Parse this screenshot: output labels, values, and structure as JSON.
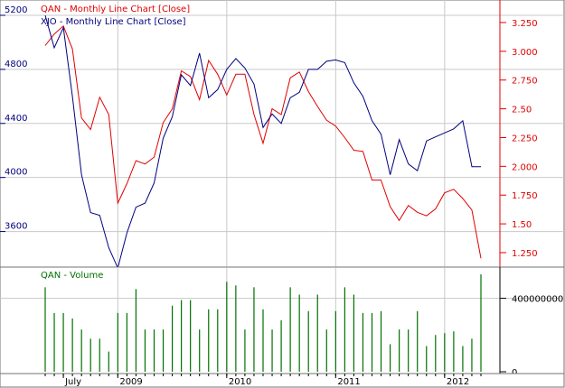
{
  "chart_data": [
    {
      "type": "line",
      "panel": "price",
      "series": [
        {
          "name": "QAN - Monthly Line Chart [Close]",
          "axis": "right",
          "color": "#e00000",
          "x": [
            "2008-05",
            "2008-06",
            "2008-07",
            "2008-08",
            "2008-09",
            "2008-10",
            "2008-11",
            "2008-12",
            "2009-01",
            "2009-02",
            "2009-03",
            "2009-04",
            "2009-05",
            "2009-06",
            "2009-07",
            "2009-08",
            "2009-09",
            "2009-10",
            "2009-11",
            "2009-12",
            "2010-01",
            "2010-02",
            "2010-03",
            "2010-04",
            "2010-05",
            "2010-06",
            "2010-07",
            "2010-08",
            "2010-09",
            "2010-10",
            "2010-11",
            "2010-12",
            "2011-01",
            "2011-02",
            "2011-03",
            "2011-04",
            "2011-05",
            "2011-06",
            "2011-07",
            "2011-08",
            "2011-09",
            "2011-10",
            "2011-11",
            "2011-12",
            "2012-01",
            "2012-02",
            "2012-03",
            "2012-04",
            "2012-05"
          ],
          "y": [
            3.05,
            3.15,
            3.22,
            3.02,
            2.42,
            2.32,
            2.6,
            2.45,
            1.68,
            1.85,
            2.05,
            2.02,
            2.08,
            2.38,
            2.5,
            2.83,
            2.78,
            2.58,
            2.92,
            2.8,
            2.62,
            2.8,
            2.8,
            2.45,
            2.2,
            2.5,
            2.45,
            2.77,
            2.82,
            2.65,
            2.52,
            2.4,
            2.35,
            2.25,
            2.14,
            2.13,
            1.88,
            1.88,
            1.65,
            1.53,
            1.66,
            1.6,
            1.57,
            1.63,
            1.77,
            1.8,
            1.72,
            1.62,
            1.2
          ]
        },
        {
          "name": "XJO - Monthly Line Chart [Close]",
          "axis": "left",
          "color": "#000080",
          "x": [
            "2008-05",
            "2008-06",
            "2008-07",
            "2008-08",
            "2008-09",
            "2008-10",
            "2008-11",
            "2008-12",
            "2009-01",
            "2009-02",
            "2009-03",
            "2009-04",
            "2009-05",
            "2009-06",
            "2009-07",
            "2009-08",
            "2009-09",
            "2009-10",
            "2009-11",
            "2009-12",
            "2010-01",
            "2010-02",
            "2010-03",
            "2010-04",
            "2010-05",
            "2010-06",
            "2010-07",
            "2010-08",
            "2010-09",
            "2010-10",
            "2010-11",
            "2010-12",
            "2011-01",
            "2011-02",
            "2011-03",
            "2011-04",
            "2011-05",
            "2011-06",
            "2011-07",
            "2011-08",
            "2011-09",
            "2011-10",
            "2011-11",
            "2011-12",
            "2012-01",
            "2012-02",
            "2012-03",
            "2012-04",
            "2012-05"
          ],
          "y": [
            5200,
            4960,
            5110,
            4600,
            4020,
            3740,
            3720,
            3480,
            3330,
            3590,
            3780,
            3810,
            3960,
            4290,
            4450,
            4760,
            4680,
            4920,
            4590,
            4650,
            4800,
            4880,
            4810,
            4690,
            4370,
            4470,
            4400,
            4590,
            4630,
            4800,
            4800,
            4860,
            4870,
            4850,
            4700,
            4600,
            4420,
            4320,
            4020,
            4280,
            4100,
            4050,
            4270,
            4300,
            4330,
            4360,
            4420,
            4080,
            4080
          ]
        }
      ],
      "x_ticks": [
        "July",
        "2009",
        "2010",
        "2011",
        "2012"
      ],
      "left_axis": {
        "ticks": [
          3600,
          4000,
          4400,
          4800,
          5200
        ],
        "range": [
          3350,
          5300
        ]
      },
      "right_axis": {
        "ticks": [
          1.25,
          1.5,
          1.75,
          2.0,
          2.25,
          2.5,
          2.75,
          3.0,
          3.25
        ],
        "range": [
          1.14,
          3.43
        ]
      },
      "grid": true,
      "legend": "top-left"
    },
    {
      "type": "bar",
      "panel": "volume",
      "title": "QAN - Volume",
      "color": "#007000",
      "x": [
        "2008-05",
        "2008-06",
        "2008-07",
        "2008-08",
        "2008-09",
        "2008-10",
        "2008-11",
        "2008-12",
        "2009-01",
        "2009-02",
        "2009-03",
        "2009-04",
        "2009-05",
        "2009-06",
        "2009-07",
        "2009-08",
        "2009-09",
        "2009-10",
        "2009-11",
        "2009-12",
        "2010-01",
        "2010-02",
        "2010-03",
        "2010-04",
        "2010-05",
        "2010-06",
        "2010-07",
        "2010-08",
        "2010-09",
        "2010-10",
        "2010-11",
        "2010-12",
        "2011-01",
        "2011-02",
        "2011-03",
        "2011-04",
        "2011-05",
        "2011-06",
        "2011-07",
        "2011-08",
        "2011-09",
        "2011-10",
        "2011-11",
        "2011-12",
        "2012-01",
        "2012-02",
        "2012-03",
        "2012-04",
        "2012-05"
      ],
      "values": [
        460000000,
        320000000,
        320000000,
        290000000,
        230000000,
        180000000,
        180000000,
        110000000,
        320000000,
        320000000,
        450000000,
        230000000,
        230000000,
        230000000,
        360000000,
        390000000,
        390000000,
        230000000,
        340000000,
        340000000,
        490000000,
        470000000,
        230000000,
        460000000,
        340000000,
        230000000,
        280000000,
        460000000,
        420000000,
        330000000,
        420000000,
        230000000,
        330000000,
        460000000,
        420000000,
        320000000,
        320000000,
        330000000,
        150000000,
        230000000,
        230000000,
        330000000,
        140000000,
        200000000,
        210000000,
        220000000,
        140000000,
        180000000,
        530000000
      ],
      "y_ticks": [
        0,
        400000000
      ],
      "ylim": [
        0,
        560000000
      ]
    }
  ],
  "labels": {
    "qan_title": "QAN - Monthly Line Chart [Close]",
    "xjo_title": "XJO - Monthly Line Chart [Close]",
    "volume_title": "QAN - Volume"
  }
}
